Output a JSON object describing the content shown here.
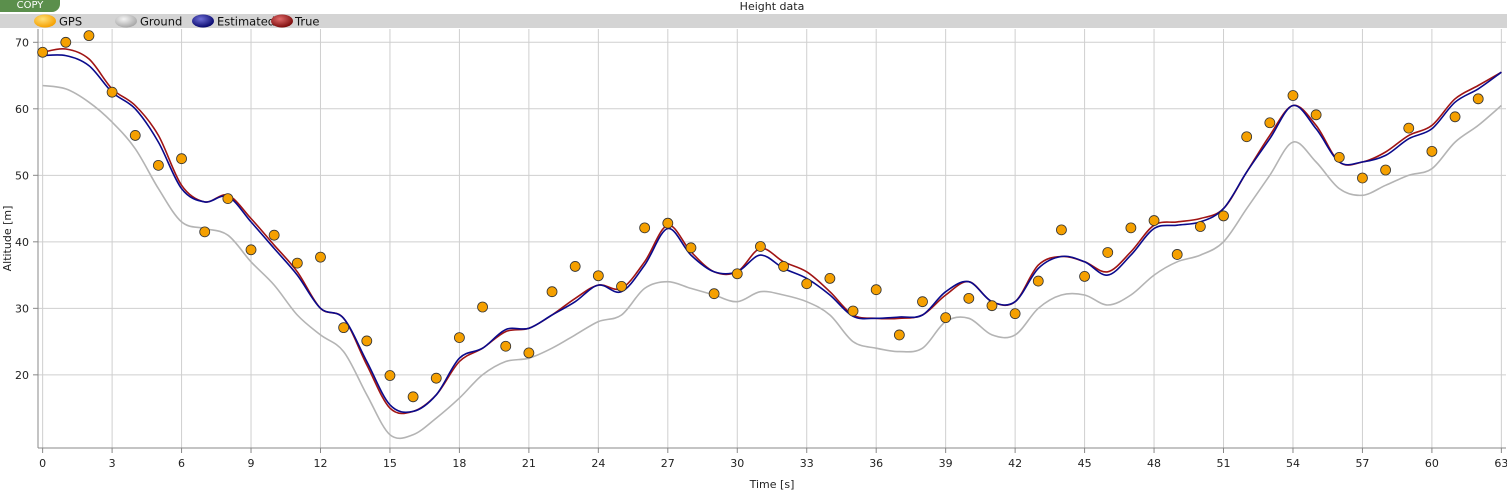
{
  "copy_button": {
    "label": "COPY"
  },
  "chart_data": {
    "type": "line",
    "title": "Height data",
    "xlabel": "Time [s]",
    "ylabel": "Altitude [m]",
    "xlim": [
      -0.2,
      63.2
    ],
    "ylim": [
      9,
      72
    ],
    "xticks": [
      0,
      3,
      6,
      9,
      12,
      15,
      18,
      21,
      24,
      27,
      30,
      33,
      36,
      39,
      42,
      45,
      48,
      51,
      54,
      57,
      60,
      63
    ],
    "yticks": [
      20,
      30,
      40,
      50,
      60,
      70
    ],
    "grid": true,
    "legend_position": "top-left",
    "series": [
      {
        "name": "GPS",
        "kind": "scatter",
        "color": "#f5a000",
        "x": [
          0,
          1,
          2,
          3,
          4,
          5,
          6,
          7,
          8,
          9,
          10,
          11,
          12,
          13,
          14,
          15,
          16,
          17,
          18,
          19,
          20,
          21,
          22,
          23,
          24,
          25,
          26,
          27,
          28,
          29,
          30,
          31,
          32,
          33,
          34,
          35,
          36,
          37,
          38,
          39,
          40,
          41,
          42,
          43,
          44,
          45,
          46,
          47,
          48,
          49,
          50,
          51,
          52,
          53,
          54,
          55,
          56,
          57,
          58,
          59,
          60,
          61,
          62
        ],
        "y": [
          68.5,
          70,
          71,
          62.5,
          56,
          51.5,
          52.5,
          41.5,
          46.5,
          38.8,
          41,
          36.8,
          37.7,
          27.1,
          25.1,
          19.9,
          16.7,
          19.5,
          25.6,
          30.2,
          24.3,
          23.3,
          32.5,
          36.3,
          34.9,
          33.3,
          42.1,
          42.8,
          39.1,
          32.2,
          35.2,
          39.3,
          36.3,
          33.7,
          34.5,
          29.6,
          32.8,
          26,
          31,
          28.6,
          31.5,
          30.4,
          29.2,
          34.1,
          41.8,
          34.8,
          38.4,
          42.1,
          43.2,
          38.1,
          42.3,
          43.9,
          55.8,
          57.9,
          62,
          59.1,
          52.7,
          49.6,
          50.8,
          57.1,
          53.6,
          58.8,
          61.5
        ]
      },
      {
        "name": "Ground",
        "kind": "line",
        "color": "#b4b4b4",
        "x": [
          0,
          1,
          2,
          3,
          4,
          5,
          6,
          7,
          8,
          9,
          10,
          11,
          12,
          13,
          14,
          15,
          16,
          17,
          18,
          19,
          20,
          21,
          22,
          23,
          24,
          25,
          26,
          27,
          28,
          29,
          30,
          31,
          32,
          33,
          34,
          35,
          36,
          37,
          38,
          39,
          40,
          41,
          42,
          43,
          44,
          45,
          46,
          47,
          48,
          49,
          50,
          51,
          52,
          53,
          54,
          55,
          56,
          57,
          58,
          59,
          60,
          61,
          62,
          63
        ],
        "y": [
          63.5,
          63,
          61,
          58,
          54,
          48,
          43,
          42,
          41,
          37,
          33.5,
          29,
          26,
          23.5,
          17,
          11,
          11,
          13.5,
          16.5,
          20,
          22,
          22.5,
          24,
          26,
          28,
          29,
          33,
          34,
          33,
          32,
          31,
          32.5,
          32,
          31,
          29,
          25,
          24,
          23.5,
          24,
          28,
          28.5,
          26,
          26,
          30,
          32,
          32,
          30.5,
          32,
          35,
          37,
          38,
          40,
          45,
          50,
          55,
          52,
          48,
          47,
          48.5,
          50,
          51,
          55,
          57.5,
          60.5
        ]
      },
      {
        "name": "Estimated",
        "kind": "line",
        "color": "#0a0a8c",
        "x": [
          0,
          1,
          2,
          3,
          4,
          5,
          6,
          7,
          8,
          9,
          10,
          11,
          12,
          13,
          14,
          15,
          16,
          17,
          18,
          19,
          20,
          21,
          22,
          23,
          24,
          25,
          26,
          27,
          28,
          29,
          30,
          31,
          32,
          33,
          34,
          35,
          36,
          37,
          38,
          39,
          40,
          41,
          42,
          43,
          44,
          45,
          46,
          47,
          48,
          49,
          50,
          51,
          52,
          53,
          54,
          55,
          56,
          57,
          58,
          59,
          60,
          61,
          62,
          63
        ],
        "y": [
          68,
          68,
          66.5,
          62.5,
          60,
          55,
          48,
          46,
          46.8,
          43,
          39,
          35,
          30,
          28.5,
          22,
          15.5,
          14.5,
          17,
          22.5,
          24,
          26.8,
          27,
          29,
          31,
          33.5,
          32.5,
          36.5,
          42,
          38,
          35.5,
          35.5,
          38,
          36,
          34.5,
          32,
          28.8,
          28.5,
          28.7,
          29,
          32.5,
          34,
          31,
          31,
          36,
          37.8,
          37,
          35,
          38,
          42,
          42.5,
          43,
          45,
          50.5,
          55.5,
          60.5,
          57,
          52,
          52,
          53,
          55.5,
          57,
          61,
          63,
          65.5
        ]
      },
      {
        "name": "True",
        "kind": "line",
        "color": "#a01414",
        "x": [
          0,
          1,
          2,
          3,
          4,
          5,
          6,
          7,
          8,
          9,
          10,
          11,
          12,
          13,
          14,
          15,
          16,
          17,
          18,
          19,
          20,
          21,
          22,
          23,
          24,
          25,
          26,
          27,
          28,
          29,
          30,
          31,
          32,
          33,
          34,
          35,
          36,
          37,
          38,
          39,
          40,
          41,
          42,
          43,
          44,
          45,
          46,
          47,
          48,
          49,
          50,
          51,
          52,
          53,
          54,
          55,
          56,
          57,
          58,
          59,
          60,
          61,
          62,
          63
        ],
        "y": [
          68.5,
          69,
          67.5,
          63,
          60.5,
          56,
          48.5,
          46,
          47,
          43.5,
          39.5,
          35.5,
          30,
          28.5,
          21.5,
          15,
          14.5,
          17,
          22,
          24,
          26.5,
          27,
          29,
          31.5,
          33.5,
          33,
          37,
          42.5,
          38.5,
          35.5,
          35.5,
          39,
          37,
          35.5,
          32.5,
          29,
          28.5,
          28.5,
          29,
          32,
          34,
          31,
          31,
          36.5,
          37.8,
          37,
          35.5,
          38.5,
          42.5,
          43,
          43.5,
          45,
          50.5,
          56,
          60.5,
          57.5,
          52,
          52,
          53.5,
          56,
          57.5,
          61.5,
          63.5,
          65.5
        ]
      }
    ]
  }
}
